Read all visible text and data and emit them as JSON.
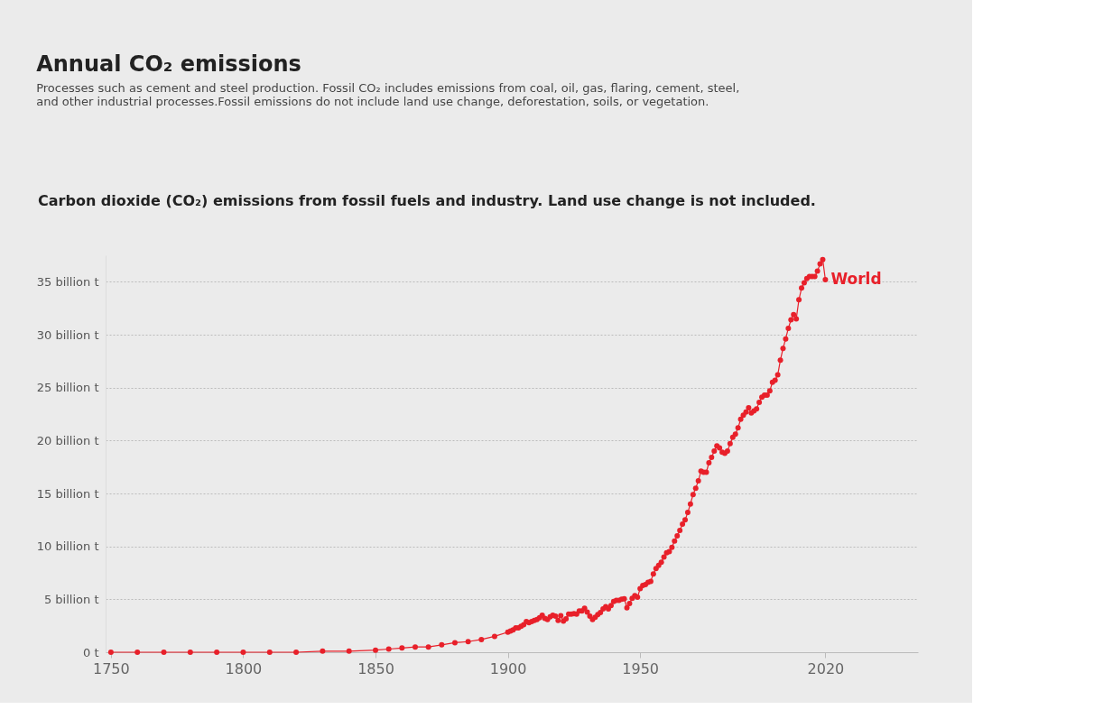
{
  "chart_data": {
    "type": "line",
    "title": "Annual CO₂ emissions",
    "subtitle": "Processes such as cement and steel production. Fossil CO₂ includes emissions from coal, oil, gas, flaring, cement, steel, and other industrial processes.Fossil emissions do not include land use change, deforestation, soils, or vegetation.",
    "annotations": [
      "Carbon dioxide (CO₂) emissions from fossil fuels and industry. Land use change is not included."
    ],
    "x": [
      1750,
      1760,
      1770,
      1780,
      1790,
      1800,
      1810,
      1820,
      1830,
      1840,
      1850,
      1855,
      1860,
      1865,
      1870,
      1875,
      1880,
      1885,
      1890,
      1895,
      1900,
      1901,
      1902,
      1903,
      1904,
      1905,
      1906,
      1907,
      1908,
      1909,
      1910,
      1911,
      1912,
      1913,
      1914,
      1915,
      1916,
      1917,
      1918,
      1919,
      1920,
      1921,
      1922,
      1923,
      1924,
      1925,
      1926,
      1927,
      1928,
      1929,
      1930,
      1931,
      1932,
      1933,
      1934,
      1935,
      1936,
      1937,
      1938,
      1939,
      1940,
      1941,
      1942,
      1943,
      1944,
      1945,
      1946,
      1947,
      1948,
      1949,
      1950,
      1951,
      1952,
      1953,
      1954,
      1955,
      1956,
      1957,
      1958,
      1959,
      1960,
      1961,
      1962,
      1963,
      1964,
      1965,
      1966,
      1967,
      1968,
      1969,
      1970,
      1971,
      1972,
      1973,
      1974,
      1975,
      1976,
      1977,
      1978,
      1979,
      1980,
      1981,
      1982,
      1983,
      1984,
      1985,
      1986,
      1987,
      1988,
      1989,
      1990,
      1991,
      1992,
      1993,
      1994,
      1995,
      1996,
      1997,
      1998,
      1999,
      2000,
      2001,
      2002,
      2003,
      2004,
      2005,
      2006,
      2007,
      2008,
      2009,
      2010,
      2011,
      2012,
      2013,
      2014,
      2015,
      2016,
      2017,
      2018,
      2019,
      2020
    ],
    "series": [
      {
        "name": "World",
        "color": "#e8202a",
        "values": [
          0,
          0,
          0,
          0,
          0,
          0,
          0,
          0,
          0.1,
          0.1,
          0.2,
          0.3,
          0.4,
          0.5,
          0.5,
          0.7,
          0.9,
          1.0,
          1.2,
          1.5,
          1.9,
          2.0,
          2.1,
          2.3,
          2.3,
          2.45,
          2.6,
          2.9,
          2.8,
          2.9,
          3.0,
          3.1,
          3.25,
          3.5,
          3.2,
          3.1,
          3.35,
          3.5,
          3.4,
          3.0,
          3.45,
          2.95,
          3.15,
          3.6,
          3.6,
          3.65,
          3.6,
          3.9,
          3.9,
          4.15,
          3.8,
          3.4,
          3.1,
          3.3,
          3.55,
          3.75,
          4.1,
          4.3,
          4.1,
          4.4,
          4.8,
          4.9,
          4.9,
          5.0,
          5.05,
          4.2,
          4.6,
          5.1,
          5.35,
          5.2,
          6.0,
          6.3,
          6.4,
          6.6,
          6.7,
          7.4,
          7.9,
          8.2,
          8.5,
          9.0,
          9.4,
          9.5,
          9.9,
          10.5,
          11.0,
          11.5,
          12.1,
          12.5,
          13.2,
          14.0,
          14.9,
          15.5,
          16.2,
          17.1,
          17.0,
          17.0,
          17.9,
          18.4,
          19.0,
          19.5,
          19.3,
          18.9,
          18.8,
          19.0,
          19.7,
          20.3,
          20.6,
          21.2,
          22.0,
          22.4,
          22.7,
          23.1,
          22.6,
          22.8,
          23.0,
          23.6,
          24.1,
          24.3,
          24.3,
          24.7,
          25.5,
          25.7,
          26.2,
          27.6,
          28.7,
          29.6,
          30.6,
          31.4,
          31.9,
          31.5,
          33.3,
          34.4,
          34.9,
          35.3,
          35.5,
          35.5,
          35.5,
          36.0,
          36.7,
          37.1,
          35.2
        ]
      }
    ],
    "xlim": [
      1748,
      2055
    ],
    "xticks": [
      1750,
      1800,
      1850,
      1900,
      1950,
      2020
    ],
    "ylim": [
      0,
      37.5
    ],
    "yticks": [
      {
        "value": 0,
        "label": "0 t"
      },
      {
        "value": 5,
        "label": "5 billion t"
      },
      {
        "value": 10,
        "label": "10 billion t"
      },
      {
        "value": 15,
        "label": "15 billion t"
      },
      {
        "value": 20,
        "label": "20 billion t"
      },
      {
        "value": 25,
        "label": "25 billion t"
      },
      {
        "value": 30,
        "label": "30 billion t"
      },
      {
        "value": 35,
        "label": "35 billion t"
      }
    ],
    "grid": "y",
    "marker": "circle",
    "line_style": "solid"
  }
}
